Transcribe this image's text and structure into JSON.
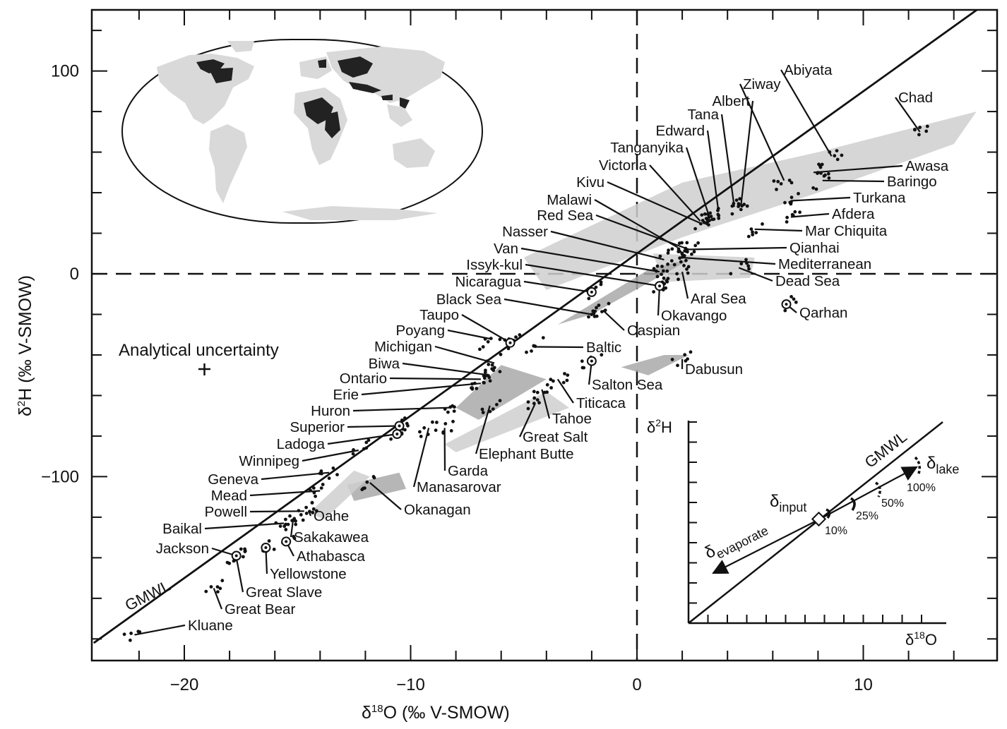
{
  "chart_data": {
    "type": "scatter",
    "xlabel": "δ18O (‰ V-SMOW)",
    "ylabel": "δ2H (‰ V-SMOW)",
    "xlim": [
      -24,
      15.7
    ],
    "ylim": [
      -190,
      128
    ],
    "x_ticks": [
      -20,
      -10,
      0,
      10
    ],
    "y_ticks": [
      -100,
      0,
      100
    ],
    "x_tick_labels": [
      "−20",
      "−10",
      "0",
      "10"
    ],
    "y_tick_labels": [
      "−100",
      "0",
      "100"
    ],
    "reference_line": {
      "name": "GMWL",
      "slope": 8,
      "intercept": 10
    },
    "zero_lines": "dashed at δ18O = 0 and δ2H = 0",
    "analytical_uncertainty": {
      "label": "Analytical uncertainty",
      "x": -19,
      "y": -47
    },
    "lakes": [
      {
        "name": "Kluane",
        "x": -22.2,
        "y": -178
      },
      {
        "name": "Great Bear",
        "x": -18.7,
        "y": -155
      },
      {
        "name": "Great Slave",
        "x": -17.7,
        "y": -140
      },
      {
        "name": "Jackson",
        "x": -17.7,
        "y": -139
      },
      {
        "name": "Yellowstone",
        "x": -16.4,
        "y": -135
      },
      {
        "name": "Athabasca",
        "x": -15.5,
        "y": -132
      },
      {
        "name": "Baikal",
        "x": -15.6,
        "y": -123
      },
      {
        "name": "Sakakawea",
        "x": -15.2,
        "y": -122
      },
      {
        "name": "Powell",
        "x": -14.7,
        "y": -117
      },
      {
        "name": "Oahe",
        "x": -14.5,
        "y": -117
      },
      {
        "name": "Mead",
        "x": -14.0,
        "y": -107
      },
      {
        "name": "Geneva",
        "x": -13.6,
        "y": -98
      },
      {
        "name": "Winnipeg",
        "x": -12.3,
        "y": -87
      },
      {
        "name": "Ladoga",
        "x": -10.6,
        "y": -79
      },
      {
        "name": "Superior",
        "x": -10.5,
        "y": -75
      },
      {
        "name": "Huron",
        "x": -8.3,
        "y": -66
      },
      {
        "name": "Erie",
        "x": -6.9,
        "y": -54
      },
      {
        "name": "Ontario",
        "x": -6.9,
        "y": -52
      },
      {
        "name": "Biwa",
        "x": -6.5,
        "y": -50
      },
      {
        "name": "Michigan",
        "x": -6.3,
        "y": -44
      },
      {
        "name": "Poyang",
        "x": -6.5,
        "y": -32
      },
      {
        "name": "Taupo",
        "x": -5.6,
        "y": -34
      },
      {
        "name": "Black Sea",
        "x": -2.0,
        "y": -20
      },
      {
        "name": "Nicaragua",
        "x": -2.0,
        "y": -9
      },
      {
        "name": "Issyk-kul",
        "x": 1.0,
        "y": -6
      },
      {
        "name": "Van",
        "x": 1.0,
        "y": 1
      },
      {
        "name": "Nasser",
        "x": 1.2,
        "y": 7
      },
      {
        "name": "Red Sea",
        "x": 2.3,
        "y": 12
      },
      {
        "name": "Malawi",
        "x": 1.8,
        "y": 13
      },
      {
        "name": "Kivu",
        "x": 2.8,
        "y": 25
      },
      {
        "name": "Victoria",
        "x": 2.8,
        "y": 26
      },
      {
        "name": "Tanganyika",
        "x": 3.2,
        "y": 28
      },
      {
        "name": "Edward",
        "x": 3.6,
        "y": 31
      },
      {
        "name": "Tana",
        "x": 4.3,
        "y": 33
      },
      {
        "name": "Albert",
        "x": 4.6,
        "y": 34
      },
      {
        "name": "Ziway",
        "x": 6.5,
        "y": 46
      },
      {
        "name": "Abiyata",
        "x": 8.6,
        "y": 58
      },
      {
        "name": "Chad",
        "x": 12.5,
        "y": 70
      },
      {
        "name": "Awasa",
        "x": 7.8,
        "y": 50
      },
      {
        "name": "Baringo",
        "x": 8.2,
        "y": 46
      },
      {
        "name": "Turkana",
        "x": 6.8,
        "y": 36
      },
      {
        "name": "Afdera",
        "x": 6.8,
        "y": 28
      },
      {
        "name": "Mar Chiquita",
        "x": 5.2,
        "y": 22
      },
      {
        "name": "Qianhai",
        "x": 2.2,
        "y": 12
      },
      {
        "name": "Mediterranean",
        "x": 2.0,
        "y": 8
      },
      {
        "name": "Dead Sea",
        "x": 4.5,
        "y": 3
      },
      {
        "name": "Aral Sea",
        "x": 2.0,
        "y": 1
      },
      {
        "name": "Okavango",
        "x": 1.0,
        "y": -6
      },
      {
        "name": "Qarhan",
        "x": 6.6,
        "y": -15
      },
      {
        "name": "Caspian",
        "x": -1.5,
        "y": -18
      },
      {
        "name": "Baltic",
        "x": -4.5,
        "y": -36
      },
      {
        "name": "Salton Sea",
        "x": -2.0,
        "y": -43
      },
      {
        "name": "Dabusun",
        "x": 2.0,
        "y": -42
      },
      {
        "name": "Titicaca",
        "x": -3.5,
        "y": -52
      },
      {
        "name": "Tahoe",
        "x": -4.2,
        "y": -57
      },
      {
        "name": "Great Salt",
        "x": -4.5,
        "y": -64
      },
      {
        "name": "Elephant Butte",
        "x": -6.5,
        "y": -65
      },
      {
        "name": "Garda",
        "x": -8.5,
        "y": -76
      },
      {
        "name": "Manasarovar",
        "x": -9.2,
        "y": -76
      },
      {
        "name": "Okanagan",
        "x": -11.8,
        "y": -103
      }
    ],
    "inset": {
      "ylabel": "δ2H",
      "xlabel": "δ18O",
      "line_label": "GMWL",
      "labels": [
        "δinput",
        "δlake",
        "δevaporate"
      ],
      "percent_marks": [
        "10%",
        "25%",
        "50%",
        "100%"
      ]
    }
  },
  "ui": {
    "ylabel_main": "δ",
    "ylabel_sup": "2",
    "ylabel_rest": "H (‰ V-SMOW)",
    "xlabel_main": "δ",
    "xlabel_sup": "18",
    "xlabel_rest": "O (‰ V-SMOW)",
    "uncertainty_label": "Analytical uncertainty",
    "gmwl_label": "GMWL",
    "inset_ylabel_main": "δ",
    "inset_ylabel_sup": "2",
    "inset_ylabel_rest": "H",
    "inset_xlabel_main": "δ",
    "inset_xlabel_sup": "18",
    "inset_xlabel_rest": "O",
    "inset_gmwl_label": "GMWL",
    "inset_input_main": "δ",
    "inset_input_sub": "input",
    "inset_lake_main": "δ",
    "inset_lake_sub": "lake",
    "inset_evap_main": "δ",
    "inset_evap_sub": "evaporate",
    "pct_10": "10%",
    "pct_25": "25%",
    "pct_50": "50%",
    "pct_100": "100%"
  },
  "colors": {
    "ink": "#111111",
    "envelope": "#b8b8b8",
    "land": "#d9d9d9"
  }
}
